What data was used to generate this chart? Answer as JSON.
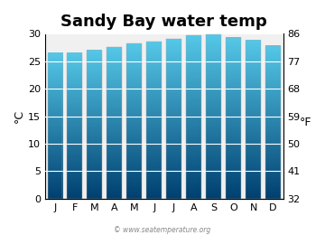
{
  "title": "Sandy Bay water temp",
  "months": [
    "J",
    "F",
    "M",
    "A",
    "M",
    "J",
    "J",
    "A",
    "S",
    "O",
    "N",
    "D"
  ],
  "values_c": [
    26.5,
    26.5,
    27.0,
    27.6,
    28.2,
    28.6,
    29.0,
    29.7,
    29.9,
    29.3,
    28.8,
    27.8
  ],
  "ylim_c": [
    0,
    30
  ],
  "yticks_c": [
    0,
    5,
    10,
    15,
    20,
    25,
    30
  ],
  "yticks_f": [
    32,
    41,
    50,
    59,
    68,
    77,
    86
  ],
  "ylabel_left": "°C",
  "ylabel_right": "°F",
  "bg_color": "#f0f0f0",
  "bar_color_top": "#55c8e8",
  "bar_color_bottom": "#004070",
  "title_fontsize": 13,
  "axis_fontsize": 8,
  "label_fontsize": 9,
  "watermark": "© www.seatemperature.org"
}
